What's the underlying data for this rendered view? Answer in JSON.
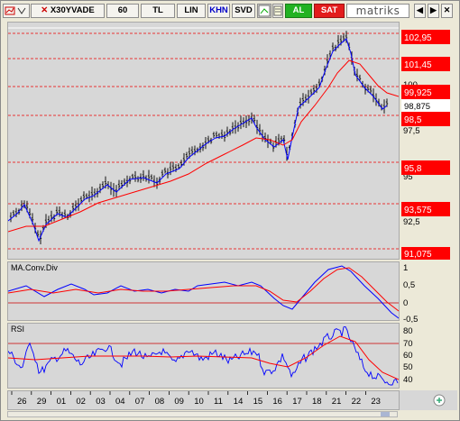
{
  "toolbar": {
    "symbol": "X30YVADE",
    "interval": "60",
    "currency": "TL",
    "scale": "LIN",
    "khn": "KHN",
    "svd": "SVD",
    "buy_label": "AL",
    "sell_label": "SAT",
    "logo_text": "matriks",
    "window_buttons": [
      "◀",
      "▶",
      "✕"
    ]
  },
  "price_pane": {
    "axis_labels": [
      "100",
      "97,5",
      "95",
      "92,5"
    ],
    "levels": [
      "102,95",
      "101,45",
      "99,925",
      "98,875",
      "98,5",
      "95,8",
      "93,575",
      "91,075"
    ]
  },
  "macd_pane": {
    "title": "MA.Conv.Div",
    "axis_labels": [
      "1",
      "0,5",
      "0",
      "-0,5"
    ]
  },
  "rsi_pane": {
    "title": "RSI",
    "axis_labels": [
      "80",
      "70",
      "60",
      "50",
      "40"
    ]
  },
  "x_axis": {
    "labels": [
      "26",
      "29",
      "01",
      "02",
      "03",
      "04",
      "07",
      "08",
      "09",
      "10",
      "11",
      "14",
      "15",
      "16",
      "17",
      "18",
      "21",
      "22",
      "23"
    ]
  },
  "colors": {
    "price_bars": "#000000",
    "blue_line": "#0000ff",
    "red_line": "#ff0000",
    "level_box": "#ff0000",
    "pane_bg": "#d7d7d7",
    "price_bg": "#ffffff"
  }
}
